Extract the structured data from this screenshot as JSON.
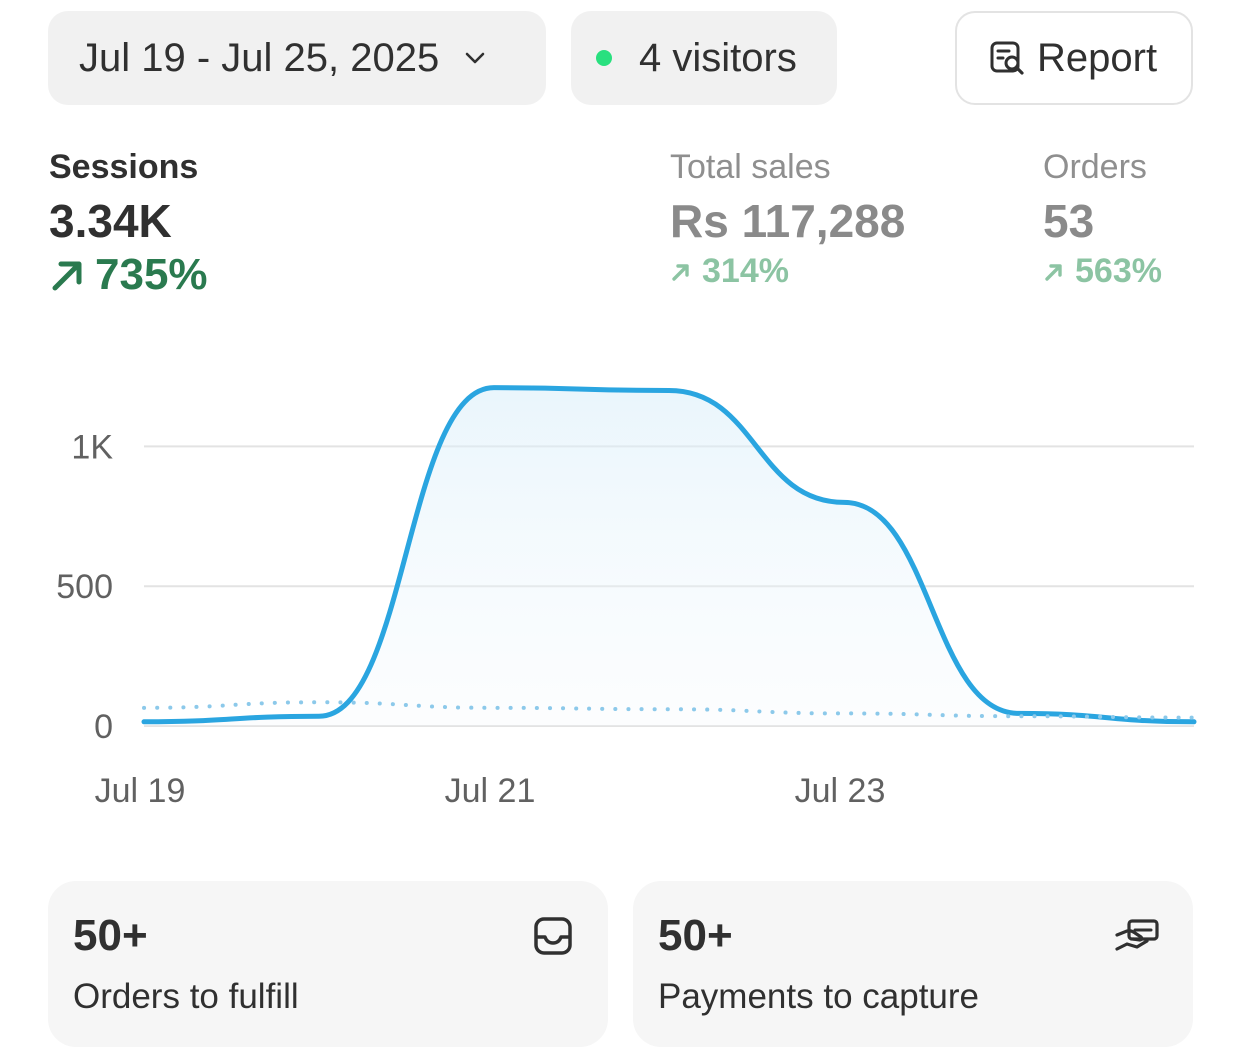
{
  "toolbar": {
    "date_range": "Jul 19 - Jul 25, 2025",
    "visitors": "4 visitors",
    "report_label": "Report",
    "live_dot_color": "#29e07f"
  },
  "metrics": {
    "sessions": {
      "label": "Sessions",
      "value": "3.34K",
      "change": "735%",
      "trend": "up"
    },
    "total_sales": {
      "label": "Total sales",
      "value": "Rs 117,288",
      "change": "314%",
      "trend": "up"
    },
    "orders": {
      "label": "Orders",
      "value": "53",
      "change": "563%",
      "trend": "up"
    }
  },
  "chart_data": {
    "type": "area",
    "x_tick_labels": [
      "Jul 19",
      "Jul 21",
      "Jul 23"
    ],
    "y_tick_labels": [
      "0",
      "500",
      "1K"
    ],
    "ylim": [
      0,
      1300
    ],
    "grid": true,
    "series": [
      {
        "style": "solid",
        "color": "#2aa5e0",
        "x": [
          "Jul 19",
          "Jul 20",
          "Jul 21",
          "Jul 22",
          "Jul 23",
          "Jul 24",
          "Jul 25"
        ],
        "values": [
          15,
          35,
          1210,
          1200,
          800,
          45,
          15
        ]
      },
      {
        "style": "dotted",
        "color": "#8cc9ea",
        "x": [
          "Jul 19",
          "Jul 20",
          "Jul 21",
          "Jul 22",
          "Jul 23",
          "Jul 24",
          "Jul 25"
        ],
        "values": [
          65,
          85,
          65,
          60,
          45,
          35,
          30
        ]
      }
    ]
  },
  "cards": [
    {
      "value": "50+",
      "label": "Orders to fulfill",
      "icon": "inbox-icon"
    },
    {
      "value": "50+",
      "label": "Payments to capture",
      "icon": "cash-hand-icon"
    }
  ]
}
